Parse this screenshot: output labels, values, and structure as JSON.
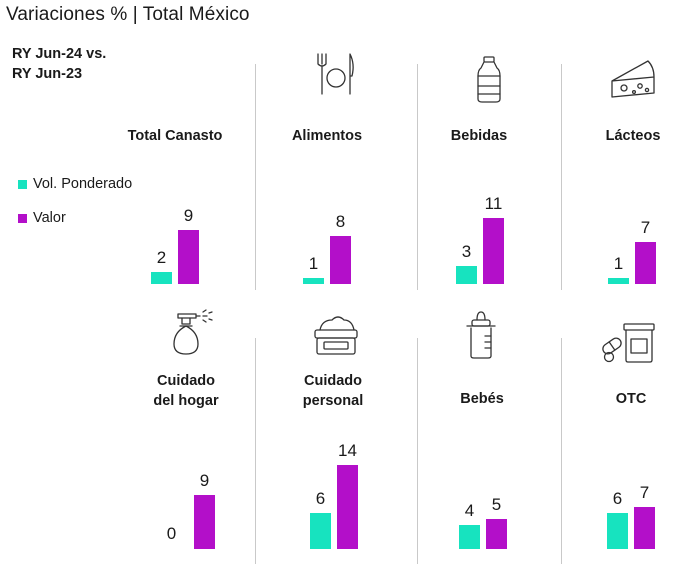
{
  "title": "Variaciones % | Total México",
  "subtitle_line1": "RY Jun-24 vs.",
  "subtitle_line2": "RY Jun-23",
  "legend": [
    {
      "label": "Vol. Ponderado",
      "color": "#17e3bf"
    },
    {
      "label": "Valor",
      "color": "#b30fc9"
    }
  ],
  "chart_data": {
    "type": "bar",
    "title": "Variaciones % | Total México",
    "series": [
      {
        "name": "Vol. Ponderado",
        "color": "#17e3bf",
        "values": [
          2,
          1,
          3,
          1,
          0,
          6,
          4,
          6
        ]
      },
      {
        "name": "Valor",
        "color": "#b30fc9",
        "values": [
          9,
          8,
          11,
          7,
          9,
          14,
          5,
          7
        ]
      }
    ],
    "categories": [
      "Total Canasto",
      "Alimentos",
      "Bebidas",
      "Lácteos",
      "Cuidado del hogar",
      "Cuidado personal",
      "Bebés",
      "OTC"
    ],
    "panels": [
      {
        "label_lines": [
          "Total Canasto"
        ],
        "icon": "none"
      },
      {
        "label_lines": [
          "Alimentos"
        ],
        "icon": "plate-cutlery-icon"
      },
      {
        "label_lines": [
          "Bebidas"
        ],
        "icon": "bottle-icon"
      },
      {
        "label_lines": [
          "Lácteos"
        ],
        "icon": "cheese-icon"
      },
      {
        "label_lines": [
          "Cuidado",
          "del hogar"
        ],
        "icon": "spray-bottle-icon"
      },
      {
        "label_lines": [
          "Cuidado",
          "personal"
        ],
        "icon": "cream-jar-icon"
      },
      {
        "label_lines": [
          "Bebés"
        ],
        "icon": "baby-bottle-icon"
      },
      {
        "label_lines": [
          "OTC"
        ],
        "icon": "pills-icon"
      }
    ]
  }
}
